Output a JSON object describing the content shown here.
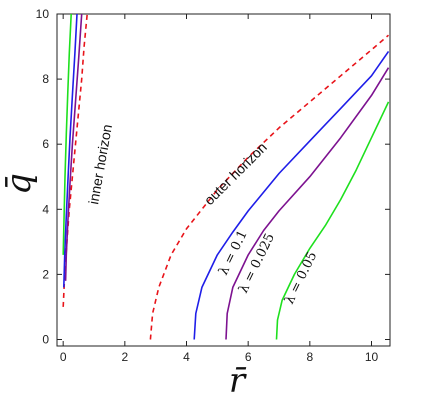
{
  "chart_data": {
    "type": "line",
    "xlabel": "r̄",
    "ylabel": "q̄",
    "xlim": [
      -0.2,
      10.6
    ],
    "ylim": [
      -0.2,
      10
    ],
    "xticks": [
      0,
      2,
      4,
      6,
      8,
      10
    ],
    "yticks": [
      0,
      2,
      4,
      6,
      8,
      10
    ],
    "grid": false,
    "legend": "none",
    "series": [
      {
        "name": "outer horizon",
        "color": "#e8141a",
        "dash": true,
        "points": [
          [
            2.83,
            0
          ],
          [
            2.9,
            0.8
          ],
          [
            3.1,
            1.6
          ],
          [
            3.5,
            2.6
          ],
          [
            4.0,
            3.4
          ],
          [
            5.0,
            4.6
          ],
          [
            6.0,
            5.6
          ],
          [
            7.0,
            6.5
          ],
          [
            8.0,
            7.3
          ],
          [
            9.0,
            8.1
          ],
          [
            10.0,
            8.9
          ],
          [
            10.55,
            9.35
          ]
        ]
      },
      {
        "name": "λ = 0.1",
        "color": "#1f1ee8",
        "dash": false,
        "points": [
          [
            4.25,
            0
          ],
          [
            4.3,
            0.8
          ],
          [
            4.5,
            1.6
          ],
          [
            5.0,
            2.6
          ],
          [
            5.5,
            3.3
          ],
          [
            6.0,
            3.95
          ],
          [
            7.0,
            5.1
          ],
          [
            8.0,
            6.1
          ],
          [
            9.0,
            7.1
          ],
          [
            10.0,
            8.1
          ],
          [
            10.55,
            8.85
          ]
        ]
      },
      {
        "name": "λ = 0.025",
        "color": "#7d1290",
        "dash": false,
        "points": [
          [
            5.28,
            0
          ],
          [
            5.32,
            0.8
          ],
          [
            5.5,
            1.6
          ],
          [
            6.0,
            2.6
          ],
          [
            6.5,
            3.35
          ],
          [
            7.0,
            3.95
          ],
          [
            8.0,
            5.0
          ],
          [
            9.0,
            6.2
          ],
          [
            10.0,
            7.5
          ],
          [
            10.55,
            8.35
          ]
        ]
      },
      {
        "name": "λ = 0.05",
        "color": "#1ee01e",
        "dash": false,
        "points": [
          [
            6.92,
            0
          ],
          [
            6.95,
            0.6
          ],
          [
            7.1,
            1.2
          ],
          [
            7.5,
            2.0
          ],
          [
            8.0,
            2.8
          ],
          [
            8.5,
            3.5
          ],
          [
            9.0,
            4.3
          ],
          [
            9.5,
            5.2
          ],
          [
            10.0,
            6.2
          ],
          [
            10.55,
            7.3
          ]
        ]
      },
      {
        "name": "inner horizon",
        "color": "#e8141a",
        "dash": true,
        "points": [
          [
            0.0,
            1.0
          ],
          [
            0.05,
            2.0
          ],
          [
            0.12,
            3.0
          ],
          [
            0.2,
            4.0
          ],
          [
            0.3,
            5.0
          ],
          [
            0.4,
            6.0
          ],
          [
            0.5,
            7.0
          ],
          [
            0.6,
            8.0
          ],
          [
            0.68,
            9.0
          ],
          [
            0.78,
            10.0
          ]
        ]
      },
      {
        "name": "inner λ = 0.05",
        "color": "#7d1290",
        "dash": false,
        "points": [
          [
            0.08,
            1.8
          ],
          [
            0.1,
            2.6
          ],
          [
            0.15,
            3.6
          ],
          [
            0.22,
            4.8
          ],
          [
            0.3,
            6.0
          ],
          [
            0.4,
            7.3
          ],
          [
            0.5,
            8.6
          ],
          [
            0.6,
            10.0
          ]
        ]
      },
      {
        "name": "inner λ = 0.1",
        "color": "#1f1ee8",
        "dash": false,
        "points": [
          [
            0.02,
            1.6
          ],
          [
            0.05,
            2.6
          ],
          [
            0.1,
            3.8
          ],
          [
            0.16,
            5.0
          ],
          [
            0.22,
            6.2
          ],
          [
            0.3,
            7.5
          ],
          [
            0.38,
            8.8
          ],
          [
            0.45,
            10.0
          ]
        ]
      },
      {
        "name": "inner λ = 0.025",
        "color": "#1ee01e",
        "dash": false,
        "points": [
          [
            0.0,
            2.6
          ],
          [
            0.03,
            3.8
          ],
          [
            0.06,
            5.0
          ],
          [
            0.1,
            6.3
          ],
          [
            0.15,
            7.6
          ],
          [
            0.2,
            8.8
          ],
          [
            0.26,
            10.0
          ]
        ]
      }
    ],
    "annotations": [
      {
        "text": "outer horizon",
        "kind": "text"
      },
      {
        "text": "inner horizon",
        "kind": "text"
      },
      {
        "text": "λ = 0.1",
        "kind": "math"
      },
      {
        "text": "λ = 0.025",
        "kind": "math"
      },
      {
        "text": "λ = 0.05",
        "kind": "math"
      }
    ]
  }
}
